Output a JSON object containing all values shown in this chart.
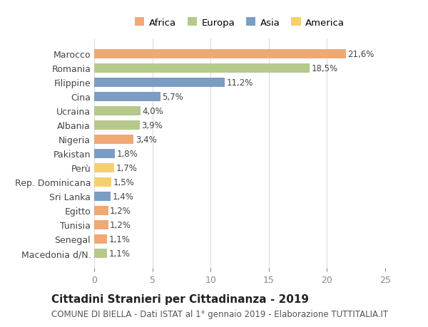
{
  "countries": [
    "Marocco",
    "Romania",
    "Filippine",
    "Cina",
    "Ucraina",
    "Albania",
    "Nigeria",
    "Pakistan",
    "Perù",
    "Rep. Dominicana",
    "Sri Lanka",
    "Egitto",
    "Tunisia",
    "Senegal",
    "Macedonia d/N."
  ],
  "values": [
    21.6,
    18.5,
    11.2,
    5.7,
    4.0,
    3.9,
    3.4,
    1.8,
    1.7,
    1.5,
    1.4,
    1.2,
    1.2,
    1.1,
    1.1
  ],
  "labels": [
    "21,6%",
    "18,5%",
    "11,2%",
    "5,7%",
    "4,0%",
    "3,9%",
    "3,4%",
    "1,8%",
    "1,7%",
    "1,5%",
    "1,4%",
    "1,2%",
    "1,2%",
    "1,1%",
    "1,1%"
  ],
  "continents": [
    "Africa",
    "Europa",
    "Asia",
    "Asia",
    "Europa",
    "Europa",
    "Africa",
    "Asia",
    "America",
    "America",
    "Asia",
    "Africa",
    "Africa",
    "Africa",
    "Europa"
  ],
  "colors": {
    "Africa": "#F0A875",
    "Europa": "#B5C98A",
    "Asia": "#7B9DC4",
    "America": "#F5D070"
  },
  "legend_order": [
    "Africa",
    "Europa",
    "Asia",
    "America"
  ],
  "xlim": [
    0,
    25
  ],
  "xticks": [
    0,
    5,
    10,
    15,
    20,
    25
  ],
  "title": "Cittadini Stranieri per Cittadinanza - 2019",
  "subtitle": "COMUNE DI BIELLA - Dati ISTAT al 1° gennaio 2019 - Elaborazione TUTTITALIA.IT",
  "bg_color": "#ffffff",
  "grid_color": "#dddddd",
  "bar_height": 0.65,
  "label_fontsize": 8.5,
  "ytick_fontsize": 9,
  "xtick_fontsize": 9,
  "title_fontsize": 11,
  "subtitle_fontsize": 8.5
}
